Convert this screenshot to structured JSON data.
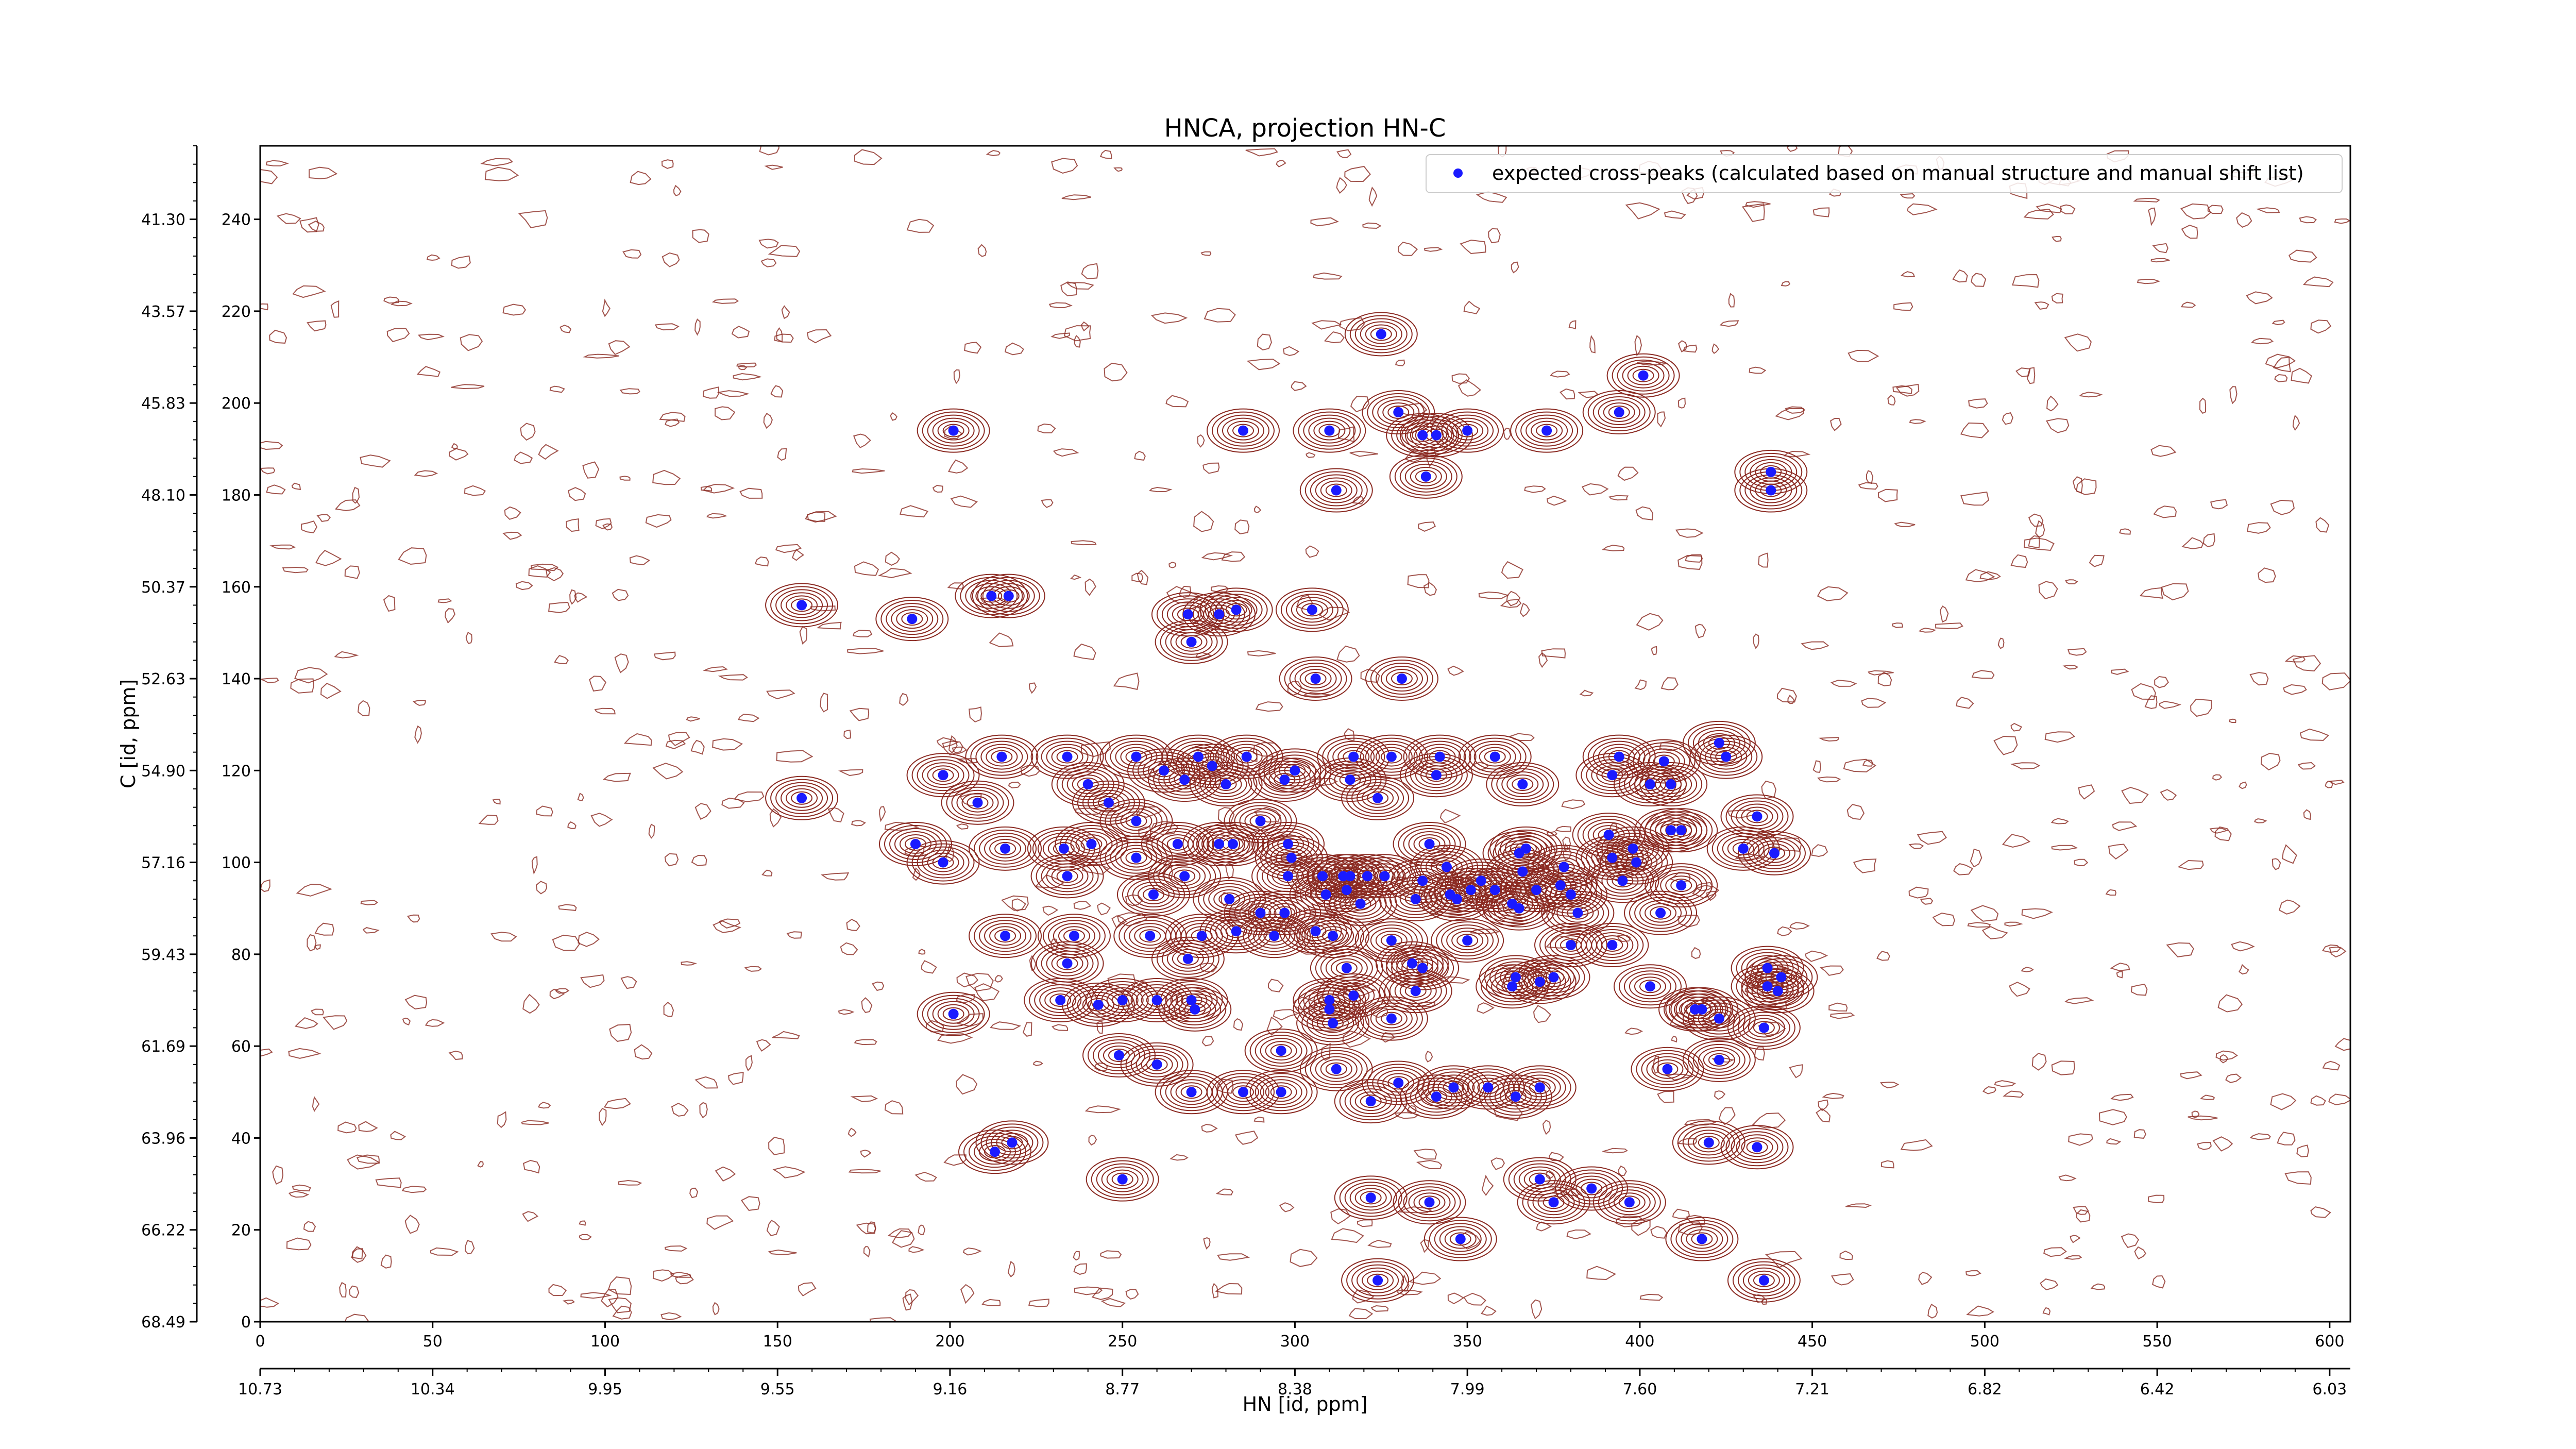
{
  "chart_data": {
    "type": "scatter",
    "title": "HNCA, projection HN-C",
    "xlabel": "HN [id, ppm]",
    "ylabel": "C [id, ppm]",
    "xlim": [
      0,
      606
    ],
    "ylim": [
      0,
      256
    ],
    "x_index_ticks": [
      "0",
      "50",
      "100",
      "150",
      "200",
      "250",
      "300",
      "350",
      "400",
      "450",
      "500",
      "550",
      "600"
    ],
    "x_ppm_ticks": [
      "10.73",
      "10.34",
      "9.95",
      "9.55",
      "9.16",
      "8.77",
      "8.38",
      "7.99",
      "7.60",
      "7.21",
      "6.82",
      "6.42",
      "6.03"
    ],
    "y_index_ticks": [
      "0",
      "20",
      "40",
      "60",
      "80",
      "100",
      "120",
      "140",
      "160",
      "180",
      "200",
      "220",
      "240"
    ],
    "y_ppm_ticks": [
      "68.49",
      "66.22",
      "63.96",
      "61.69",
      "59.43",
      "57.16",
      "54.90",
      "52.63",
      "50.37",
      "48.10",
      "45.83",
      "43.57",
      "41.30"
    ],
    "legend": {
      "label": "expected cross-peaks (calculated based on manual structure and manual shift list)",
      "position": "top-right",
      "marker_color": "#1a1aff"
    },
    "colors": {
      "contour_positive": "#8b2a22",
      "contour_negative": "#2e8b57",
      "peak": "#1a1aff"
    },
    "series": [
      {
        "name": "expected cross-peaks (calculated based on manual structure and manual shift list)",
        "points": [
          [
            325,
            215
          ],
          [
            401,
            206
          ],
          [
            394,
            198
          ],
          [
            201,
            194
          ],
          [
            285,
            194
          ],
          [
            310,
            194
          ],
          [
            330,
            198
          ],
          [
            337,
            193
          ],
          [
            341,
            193
          ],
          [
            350,
            194
          ],
          [
            373,
            194
          ],
          [
            338,
            184
          ],
          [
            312,
            181
          ],
          [
            438,
            185
          ],
          [
            438,
            181
          ],
          [
            157,
            156
          ],
          [
            212,
            158
          ],
          [
            217,
            158
          ],
          [
            189,
            153
          ],
          [
            269,
            154
          ],
          [
            278,
            154
          ],
          [
            283,
            155
          ],
          [
            305,
            155
          ],
          [
            270,
            148
          ],
          [
            306,
            140
          ],
          [
            331,
            140
          ],
          [
            215,
            123
          ],
          [
            234,
            123
          ],
          [
            254,
            123
          ],
          [
            272,
            123
          ],
          [
            286,
            123
          ],
          [
            300,
            120
          ],
          [
            317,
            123
          ],
          [
            328,
            123
          ],
          [
            342,
            123
          ],
          [
            358,
            123
          ],
          [
            394,
            123
          ],
          [
            407,
            122
          ],
          [
            423,
            126
          ],
          [
            425,
            123
          ],
          [
            198,
            119
          ],
          [
            240,
            117
          ],
          [
            262,
            120
          ],
          [
            268,
            118
          ],
          [
            276,
            121
          ],
          [
            280,
            117
          ],
          [
            297,
            118
          ],
          [
            316,
            118
          ],
          [
            341,
            119
          ],
          [
            366,
            117
          ],
          [
            392,
            119
          ],
          [
            403,
            117
          ],
          [
            409,
            117
          ],
          [
            157,
            114
          ],
          [
            324,
            114
          ],
          [
            246,
            113
          ],
          [
            208,
            113
          ],
          [
            254,
            109
          ],
          [
            290,
            109
          ],
          [
            391,
            106
          ],
          [
            409,
            107
          ],
          [
            412,
            107
          ],
          [
            434,
            110
          ],
          [
            190,
            104
          ],
          [
            216,
            103
          ],
          [
            233,
            103
          ],
          [
            241,
            104
          ],
          [
            266,
            104
          ],
          [
            278,
            104
          ],
          [
            282,
            104
          ],
          [
            298,
            104
          ],
          [
            339,
            104
          ],
          [
            367,
            103
          ],
          [
            398,
            103
          ],
          [
            430,
            103
          ],
          [
            439,
            102
          ],
          [
            198,
            100
          ],
          [
            254,
            101
          ],
          [
            299,
            101
          ],
          [
            321,
            97
          ],
          [
            344,
            99
          ],
          [
            365,
            102
          ],
          [
            378,
            99
          ],
          [
            392,
            101
          ],
          [
            399,
            100
          ],
          [
            234,
            97
          ],
          [
            268,
            97
          ],
          [
            298,
            97
          ],
          [
            308,
            97
          ],
          [
            314,
            97
          ],
          [
            316,
            97
          ],
          [
            326,
            97
          ],
          [
            337,
            96
          ],
          [
            354,
            96
          ],
          [
            366,
            98
          ],
          [
            377,
            95
          ],
          [
            395,
            96
          ],
          [
            412,
            95
          ],
          [
            259,
            93
          ],
          [
            281,
            92
          ],
          [
            309,
            93
          ],
          [
            315,
            94
          ],
          [
            335,
            92
          ],
          [
            345,
            93
          ],
          [
            351,
            94
          ],
          [
            358,
            94
          ],
          [
            363,
            91
          ],
          [
            370,
            94
          ],
          [
            380,
            93
          ],
          [
            290,
            89
          ],
          [
            297,
            89
          ],
          [
            319,
            91
          ],
          [
            347,
            92
          ],
          [
            365,
            90
          ],
          [
            382,
            89
          ],
          [
            406,
            89
          ],
          [
            216,
            84
          ],
          [
            236,
            84
          ],
          [
            258,
            84
          ],
          [
            283,
            85
          ],
          [
            273,
            84
          ],
          [
            294,
            84
          ],
          [
            306,
            85
          ],
          [
            311,
            84
          ],
          [
            328,
            83
          ],
          [
            350,
            83
          ],
          [
            380,
            82
          ],
          [
            392,
            82
          ],
          [
            234,
            78
          ],
          [
            269,
            79
          ],
          [
            315,
            77
          ],
          [
            334,
            78
          ],
          [
            337,
            77
          ],
          [
            364,
            75
          ],
          [
            375,
            75
          ],
          [
            437,
            77
          ],
          [
            441,
            75
          ],
          [
            232,
            70
          ],
          [
            250,
            70
          ],
          [
            260,
            70
          ],
          [
            270,
            70
          ],
          [
            310,
            70
          ],
          [
            317,
            71
          ],
          [
            335,
            72
          ],
          [
            363,
            73
          ],
          [
            371,
            74
          ],
          [
            403,
            73
          ],
          [
            437,
            73
          ],
          [
            440,
            72
          ],
          [
            418,
            68
          ],
          [
            416,
            68
          ],
          [
            201,
            67
          ],
          [
            243,
            69
          ],
          [
            271,
            68
          ],
          [
            310,
            68
          ],
          [
            328,
            66
          ],
          [
            311,
            65
          ],
          [
            423,
            66
          ],
          [
            436,
            64
          ],
          [
            249,
            58
          ],
          [
            296,
            59
          ],
          [
            260,
            56
          ],
          [
            312,
            55
          ],
          [
            330,
            52
          ],
          [
            346,
            51
          ],
          [
            356,
            51
          ],
          [
            371,
            51
          ],
          [
            408,
            55
          ],
          [
            423,
            57
          ],
          [
            218,
            39
          ],
          [
            213,
            37
          ],
          [
            270,
            50
          ],
          [
            285,
            50
          ],
          [
            296,
            50
          ],
          [
            322,
            48
          ],
          [
            341,
            49
          ],
          [
            364,
            49
          ],
          [
            420,
            39
          ],
          [
            434,
            38
          ],
          [
            250,
            31
          ],
          [
            322,
            27
          ],
          [
            371,
            31
          ],
          [
            375,
            26
          ],
          [
            386,
            29
          ],
          [
            397,
            26
          ],
          [
            339,
            26
          ],
          [
            418,
            18
          ],
          [
            348,
            18
          ],
          [
            436,
            9
          ],
          [
            324,
            9
          ]
        ]
      }
    ]
  }
}
